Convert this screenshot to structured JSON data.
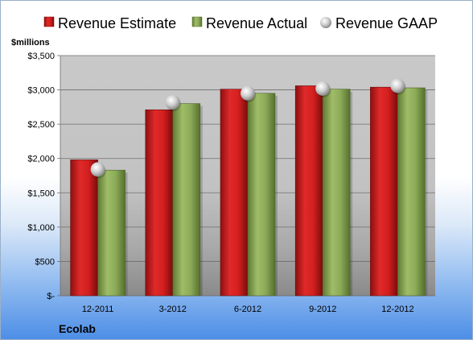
{
  "chart_data": {
    "type": "bar",
    "company": "Ecolab",
    "ylabel": "$millions",
    "categories": [
      "12-2011",
      "3-2012",
      "6-2012",
      "9-2012",
      "12-2012"
    ],
    "series": [
      {
        "name": "Revenue Estimate",
        "kind": "bar",
        "color": "#d01c1c",
        "values": [
          1980,
          2710,
          3010,
          3060,
          3040
        ]
      },
      {
        "name": "Revenue Actual",
        "kind": "bar",
        "color": "#8eae5a",
        "values": [
          1830,
          2800,
          2950,
          3010,
          3030
        ]
      },
      {
        "name": "Revenue GAAP",
        "kind": "marker",
        "color": "#c8c8c8",
        "values": [
          1840,
          2820,
          2950,
          3020,
          3060
        ]
      }
    ],
    "ylim": [
      0,
      3500
    ],
    "yticks": [
      0,
      500,
      1000,
      1500,
      2000,
      2500,
      3000,
      3500
    ],
    "ytick_labels": [
      "$-",
      "$500",
      "$1,000",
      "$1,500",
      "$2,000",
      "$2,500",
      "$3,000",
      "$3,500"
    ],
    "grid": true,
    "legend_position": "top"
  }
}
